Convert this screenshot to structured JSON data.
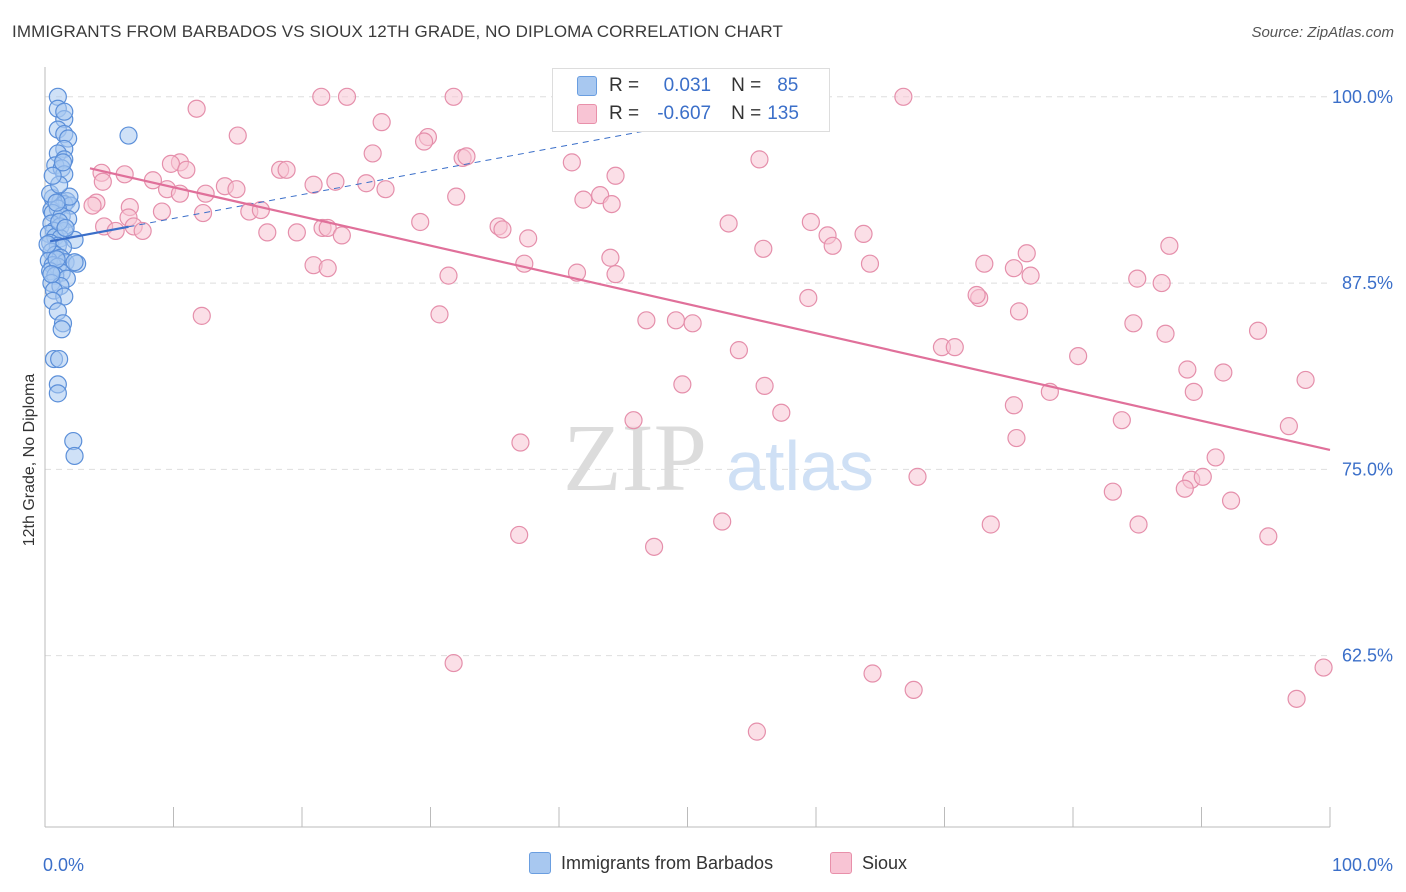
{
  "title": "IMMIGRANTS FROM BARBADOS VS SIOUX 12TH GRADE, NO DIPLOMA CORRELATION CHART",
  "source": "Source: ZipAtlas.com",
  "watermark": {
    "zip": "ZIP",
    "atlas": "atlas"
  },
  "colors": {
    "blue_fill": "#a8c8f0",
    "blue_stroke": "#5b8fd9",
    "blue_line": "#3b6fc9",
    "pink_fill": "#f8c4d4",
    "pink_stroke": "#e58fab",
    "pink_line": "#e0709a",
    "tick_text": "#3b6fc9"
  },
  "stats": {
    "blue": {
      "r_label": "R =",
      "r_value": "0.031",
      "n_label": "N =",
      "n_value": "85"
    },
    "pink": {
      "r_label": "R =",
      "r_value": "-0.607",
      "n_label": "N =",
      "n_value": "135"
    }
  },
  "legend": {
    "blue": "Immigrants from Barbados",
    "pink": "Sioux"
  },
  "chart_data": {
    "type": "scatter",
    "xlabel": "",
    "ylabel": "12th Grade, No Diploma",
    "xlim": [
      0,
      100
    ],
    "ylim": [
      51,
      102
    ],
    "x_ticks": [
      "0.0%",
      "100.0%"
    ],
    "y_ticks": [
      {
        "value": 100,
        "label": "100.0%"
      },
      {
        "value": 87.5,
        "label": "87.5%"
      },
      {
        "value": 75,
        "label": "75.0%"
      },
      {
        "value": 62.5,
        "label": "62.5%"
      }
    ],
    "grid": true,
    "series": [
      {
        "name": "Immigrants from Barbados",
        "trend": {
          "x": [
            0.4,
            61
          ],
          "y": [
            90.3,
            100.0
          ],
          "style": "solid-then-dashed",
          "solid_to": 6.5
        },
        "points": [
          [
            1,
            100
          ],
          [
            1,
            99.2
          ],
          [
            1.5,
            98.5
          ],
          [
            1.5,
            99
          ],
          [
            1,
            97.8
          ],
          [
            1.5,
            97.5
          ],
          [
            1.8,
            97.2
          ],
          [
            1.5,
            96.5
          ],
          [
            1,
            96.2
          ],
          [
            1.5,
            95.8
          ],
          [
            0.8,
            95.4
          ],
          [
            1.3,
            95.2
          ],
          [
            1.5,
            94.8
          ],
          [
            0.6,
            93.2
          ],
          [
            1.2,
            93
          ],
          [
            1.7,
            93
          ],
          [
            1.5,
            92.8
          ],
          [
            2,
            92.7
          ],
          [
            0.5,
            92.4
          ],
          [
            1,
            92.5
          ],
          [
            0.6,
            92.2
          ],
          [
            1.3,
            92
          ],
          [
            1.8,
            91.8
          ],
          [
            0.5,
            91.5
          ],
          [
            1.2,
            91.3
          ],
          [
            0.7,
            91
          ],
          [
            1.5,
            91
          ],
          [
            0.3,
            90.8
          ],
          [
            0.8,
            90.6
          ],
          [
            1.2,
            90.5
          ],
          [
            2.3,
            90.4
          ],
          [
            0.4,
            90.2
          ],
          [
            1,
            90
          ],
          [
            1.4,
            89.9
          ],
          [
            0.5,
            89.6
          ],
          [
            0.8,
            89.4
          ],
          [
            1.2,
            89.2
          ],
          [
            0.3,
            89
          ],
          [
            1.6,
            88.9
          ],
          [
            2.5,
            88.8
          ],
          [
            0.6,
            88.7
          ],
          [
            1,
            88.6
          ],
          [
            0.4,
            88.3
          ],
          [
            1.3,
            88.2
          ],
          [
            0.8,
            88
          ],
          [
            1.7,
            87.8
          ],
          [
            0.5,
            87.5
          ],
          [
            1.2,
            87.3
          ],
          [
            0.7,
            87
          ],
          [
            1.5,
            86.6
          ],
          [
            0.6,
            86.3
          ],
          [
            1,
            85.6
          ],
          [
            1.4,
            84.8
          ],
          [
            1.3,
            84.4
          ],
          [
            0.7,
            82.4
          ],
          [
            1.1,
            82.4
          ],
          [
            1,
            80.7
          ],
          [
            1,
            80.1
          ],
          [
            2.2,
            76.9
          ],
          [
            2.3,
            75.9
          ],
          [
            6.5,
            97.4
          ],
          [
            2.3,
            88.9
          ],
          [
            0.4,
            93.5
          ],
          [
            1.9,
            93.3
          ],
          [
            0.9,
            92.9
          ],
          [
            1.1,
            91.6
          ],
          [
            0.2,
            90.1
          ],
          [
            0.9,
            89.1
          ],
          [
            1.6,
            91.2
          ],
          [
            0.5,
            88.1
          ],
          [
            1.4,
            95.6
          ],
          [
            1.1,
            94.1
          ],
          [
            0.6,
            94.7
          ]
        ]
      },
      {
        "name": "Sioux",
        "trend": {
          "x": [
            3.5,
            100
          ],
          "y": [
            95.2,
            76.3
          ]
        },
        "points": [
          [
            21.5,
            100
          ],
          [
            23.5,
            100
          ],
          [
            31.8,
            100
          ],
          [
            66.8,
            100
          ],
          [
            11.8,
            99.2
          ],
          [
            26.2,
            98.3
          ],
          [
            15,
            97.4
          ],
          [
            29.8,
            97.3
          ],
          [
            29.5,
            97
          ],
          [
            25.5,
            96.2
          ],
          [
            32.5,
            95.9
          ],
          [
            32.8,
            96
          ],
          [
            55.6,
            95.8
          ],
          [
            10.5,
            95.6
          ],
          [
            41,
            95.6
          ],
          [
            9.8,
            95.5
          ],
          [
            11,
            95.1
          ],
          [
            18.3,
            95.1
          ],
          [
            18.8,
            95.1
          ],
          [
            4.4,
            94.9
          ],
          [
            6.2,
            94.8
          ],
          [
            44.4,
            94.7
          ],
          [
            8.4,
            94.4
          ],
          [
            4.5,
            94.3
          ],
          [
            22.6,
            94.3
          ],
          [
            25,
            94.2
          ],
          [
            20.9,
            94.1
          ],
          [
            14,
            94
          ],
          [
            9.5,
            93.8
          ],
          [
            14.9,
            93.8
          ],
          [
            10.5,
            93.5
          ],
          [
            12.5,
            93.5
          ],
          [
            26.5,
            93.8
          ],
          [
            43.2,
            93.4
          ],
          [
            32,
            93.3
          ],
          [
            41.9,
            93.1
          ],
          [
            4,
            92.9
          ],
          [
            3.7,
            92.7
          ],
          [
            6.6,
            92.6
          ],
          [
            44.1,
            92.8
          ],
          [
            9.1,
            92.3
          ],
          [
            15.9,
            92.3
          ],
          [
            12.3,
            92.2
          ],
          [
            16.8,
            92.4
          ],
          [
            6.5,
            91.9
          ],
          [
            29.2,
            91.6
          ],
          [
            4.6,
            91.3
          ],
          [
            5.5,
            91
          ],
          [
            6.9,
            91.3
          ],
          [
            7.6,
            91
          ],
          [
            21.6,
            91.2
          ],
          [
            22,
            91.2
          ],
          [
            17.3,
            90.9
          ],
          [
            19.6,
            90.9
          ],
          [
            23.1,
            90.7
          ],
          [
            35.3,
            91.3
          ],
          [
            53.2,
            91.5
          ],
          [
            59.6,
            91.6
          ],
          [
            60.9,
            90.7
          ],
          [
            63.7,
            90.8
          ],
          [
            37.6,
            90.5
          ],
          [
            35.6,
            91.1
          ],
          [
            61.3,
            90
          ],
          [
            55.9,
            89.8
          ],
          [
            76.4,
            89.5
          ],
          [
            87.5,
            90
          ],
          [
            44,
            89.2
          ],
          [
            64.2,
            88.8
          ],
          [
            73.1,
            88.8
          ],
          [
            37.3,
            88.8
          ],
          [
            75.4,
            88.5
          ],
          [
            41.4,
            88.2
          ],
          [
            44.4,
            88.1
          ],
          [
            31.4,
            88
          ],
          [
            76.7,
            88
          ],
          [
            85,
            87.8
          ],
          [
            86.9,
            87.5
          ],
          [
            59.4,
            86.5
          ],
          [
            72.7,
            86.5
          ],
          [
            72.5,
            86.7
          ],
          [
            20.9,
            88.7
          ],
          [
            22,
            88.5
          ],
          [
            75.8,
            85.6
          ],
          [
            12.2,
            85.3
          ],
          [
            30.7,
            85.4
          ],
          [
            46.8,
            85
          ],
          [
            49.1,
            85
          ],
          [
            50.4,
            84.8
          ],
          [
            84.7,
            84.8
          ],
          [
            87.2,
            84.1
          ],
          [
            94.4,
            84.3
          ],
          [
            69.8,
            83.2
          ],
          [
            70.8,
            83.2
          ],
          [
            54,
            83
          ],
          [
            80.4,
            82.6
          ],
          [
            88.9,
            81.7
          ],
          [
            91.7,
            81.5
          ],
          [
            98.1,
            81
          ],
          [
            49.6,
            80.7
          ],
          [
            56,
            80.6
          ],
          [
            78.2,
            80.2
          ],
          [
            89.4,
            80.2
          ],
          [
            75.4,
            79.3
          ],
          [
            57.3,
            78.8
          ],
          [
            83.8,
            78.3
          ],
          [
            45.8,
            78.3
          ],
          [
            96.8,
            77.9
          ],
          [
            75.6,
            77.1
          ],
          [
            37,
            76.8
          ],
          [
            91.1,
            75.8
          ],
          [
            89.2,
            74.3
          ],
          [
            90.1,
            74.5
          ],
          [
            67.9,
            74.5
          ],
          [
            83.1,
            73.5
          ],
          [
            88.7,
            73.7
          ],
          [
            92.3,
            72.9
          ],
          [
            52.7,
            71.5
          ],
          [
            73.6,
            71.3
          ],
          [
            85.1,
            71.3
          ],
          [
            95.2,
            70.5
          ],
          [
            36.9,
            70.6
          ],
          [
            47.4,
            69.8
          ],
          [
            31.8,
            62
          ],
          [
            99.5,
            61.7
          ],
          [
            64.4,
            61.3
          ],
          [
            67.6,
            60.2
          ],
          [
            97.4,
            59.6
          ],
          [
            55.4,
            57.4
          ]
        ]
      }
    ]
  }
}
